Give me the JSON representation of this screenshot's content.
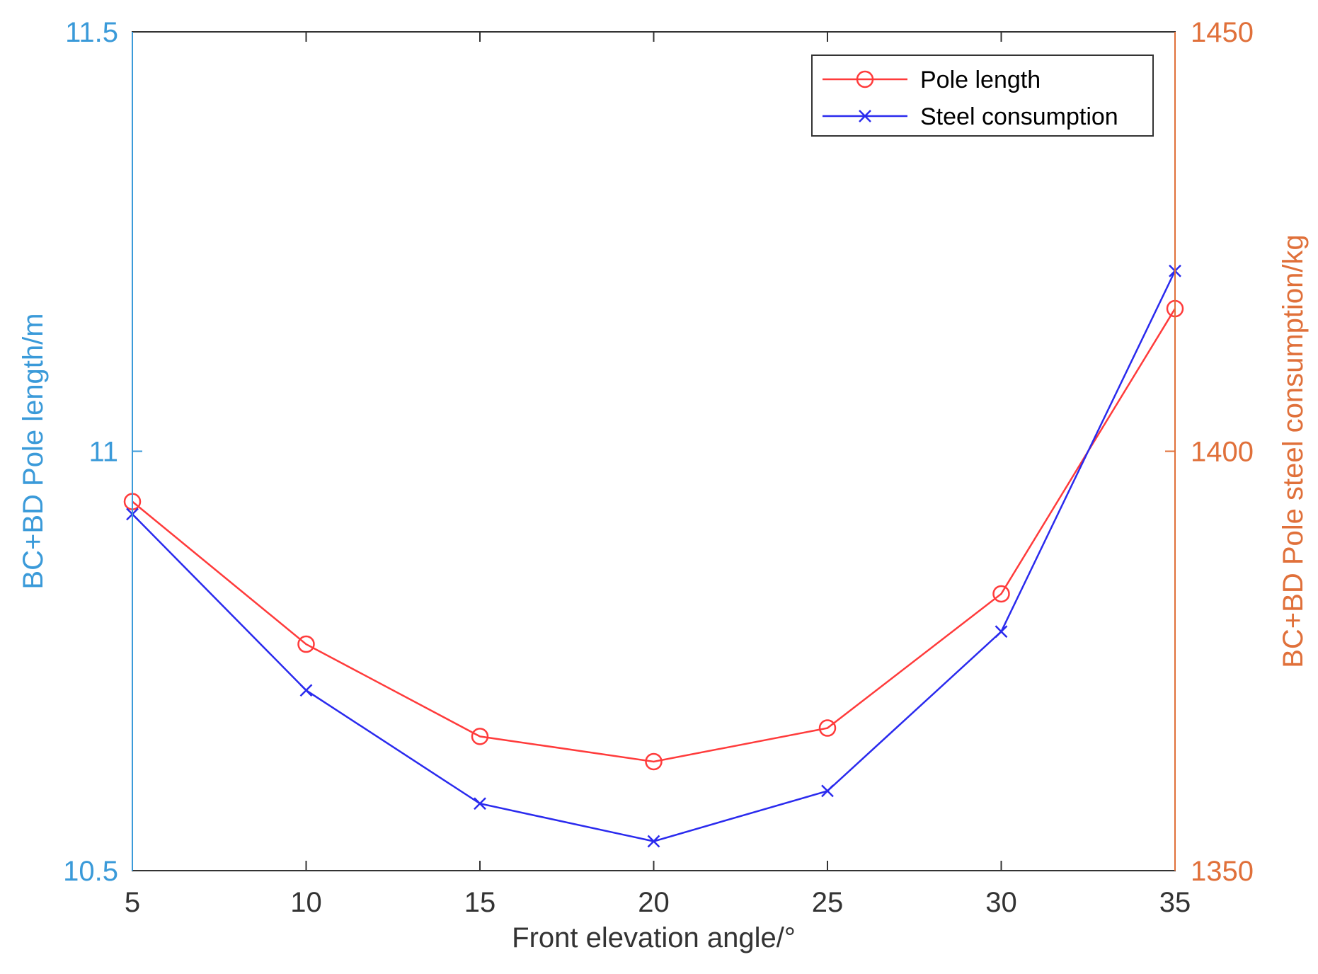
{
  "chart_data": {
    "type": "line",
    "title": "",
    "xlabel": "Front elevation angle/°",
    "ylabel_left": "BC+BD Pole length/m",
    "ylabel_right": "BC+BD Pole steel consumption/kg",
    "x": [
      5,
      10,
      15,
      20,
      25,
      30,
      35
    ],
    "xlim": [
      5,
      35
    ],
    "xticks": [
      "5",
      "10",
      "15",
      "20",
      "25",
      "30",
      "35"
    ],
    "ylim_left": [
      10.5,
      11.5
    ],
    "yticks_left": [
      "10.5",
      "11",
      "11.5"
    ],
    "ylim_right": [
      1350,
      1450
    ],
    "yticks_right": [
      "1350",
      "1400",
      "1450"
    ],
    "grid": false,
    "legend_position": "top-right",
    "colors": {
      "left_axis": "#3a9ad9",
      "right_axis": "#e0703a",
      "pole_length": "#ff3b3b",
      "steel_consumption": "#2a2aee",
      "box": "#333333"
    },
    "series": [
      {
        "name": "Pole length",
        "axis": "left",
        "marker": "circle",
        "values": [
          10.94,
          10.77,
          10.66,
          10.63,
          10.67,
          10.83,
          11.17
        ]
      },
      {
        "name": "Steel consumption",
        "axis": "right",
        "marker": "x",
        "values": [
          1392.5,
          1371.5,
          1358,
          1353.5,
          1359.5,
          1378.5,
          1421.5
        ]
      }
    ]
  }
}
